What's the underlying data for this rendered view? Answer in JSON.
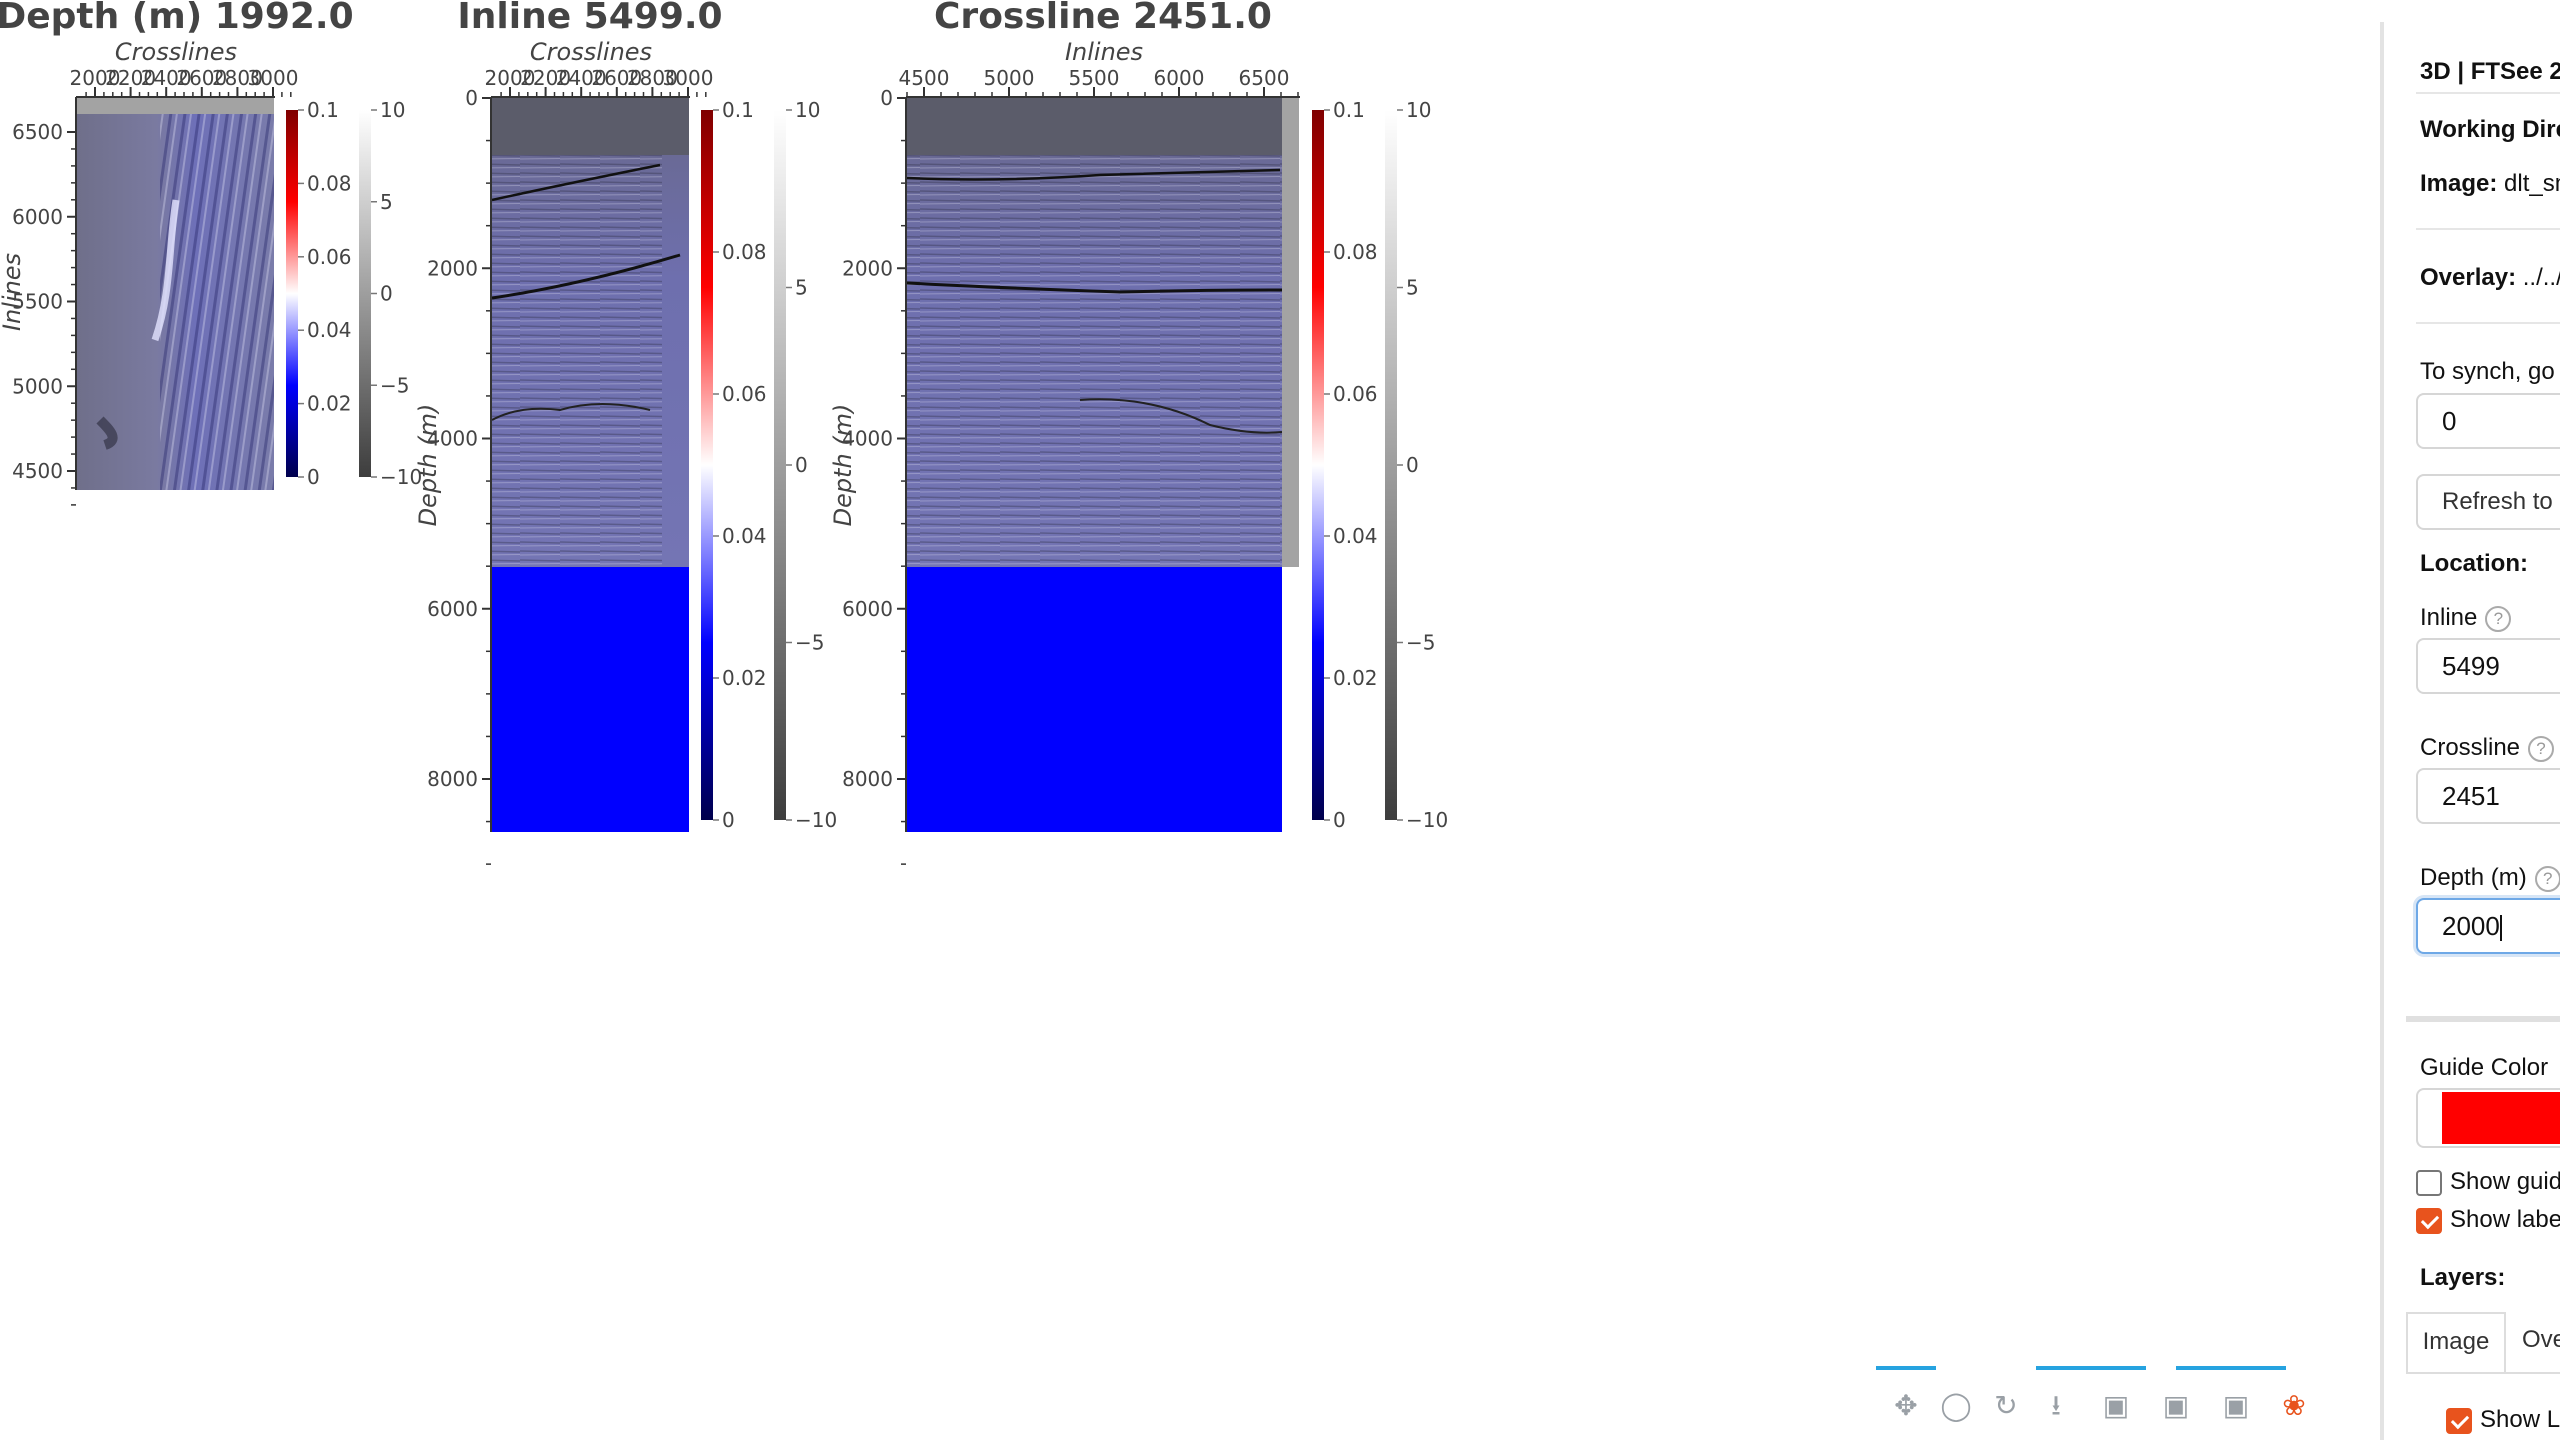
{
  "plots": {
    "depth_slice": {
      "title": "Depth (m) 1992.0",
      "xlabel": "Crosslines",
      "ylabel": "Inlines",
      "x_ticks": [
        "2000",
        "2200",
        "2400",
        "2600",
        "2800",
        "3000"
      ],
      "y_ticks": [
        "6500",
        "6000",
        "5500",
        "5000",
        "4500"
      ]
    },
    "inline": {
      "title": "Inline 5499.0",
      "xlabel": "Crosslines",
      "ylabel": "Depth (m)",
      "x_ticks": [
        "2000",
        "2200",
        "2400",
        "2600",
        "2800",
        "3000"
      ],
      "y_ticks": [
        "0",
        "2000",
        "4000",
        "6000",
        "8000"
      ]
    },
    "crossline": {
      "title": "Crossline 2451.0",
      "xlabel": "Inlines",
      "ylabel": "Depth (m)",
      "x_ticks": [
        "4500",
        "5000",
        "5500",
        "6000",
        "6500"
      ],
      "y_ticks": [
        "0",
        "2000",
        "4000",
        "6000",
        "8000"
      ]
    },
    "overlay_colorbar_ticks": [
      "0.1",
      "0.08",
      "0.06",
      "0.04",
      "0.02",
      "0"
    ],
    "seismic_colorbar_ticks": [
      "10",
      "5",
      "0",
      "−5",
      "−10"
    ],
    "colors": {
      "overlay_high": "#7f0000",
      "overlay_mid": "#ffffff",
      "overlay_low": "#00004c",
      "fill_blue": "#0000ff",
      "header_gray": "#5b5c6a",
      "seismic_tint": "#6e6fa8"
    }
  },
  "toolbar": {
    "icons": [
      "pan-icon",
      "wheel-zoom-icon",
      "reset-icon",
      "save-icon",
      "hover-icon",
      "hover-icon-2",
      "hover-icon-3",
      "bokeh-logo-icon"
    ]
  },
  "panel": {
    "title": "3D | FTSee 2",
    "working_dir_label": "Working Dire",
    "image_label": "Image:",
    "image_value": "dlt_sm",
    "overlay_label": "Overlay:",
    "overlay_value": "../../",
    "sync_label": "To synch, go t",
    "sync_value": "0",
    "refresh_label": "Refresh to",
    "location_label": "Location:",
    "inline_label": "Inline",
    "inline_value": "5499",
    "crossline_label": "Crossline",
    "crossline_value": "2451",
    "depth_label": "Depth (m)",
    "depth_value": "2000",
    "guide_color_label": "Guide Color",
    "guide_color": "#ff0000",
    "show_guides_label": "Show guid",
    "show_guides_checked": false,
    "show_labels_label": "Show labe",
    "show_labels_checked": true,
    "layers_label": "Layers:",
    "tab_image": "Image",
    "tab_overlay": "Ove",
    "show_layer_label": "Show La",
    "show_layer_checked": true,
    "help_glyph": "?"
  }
}
